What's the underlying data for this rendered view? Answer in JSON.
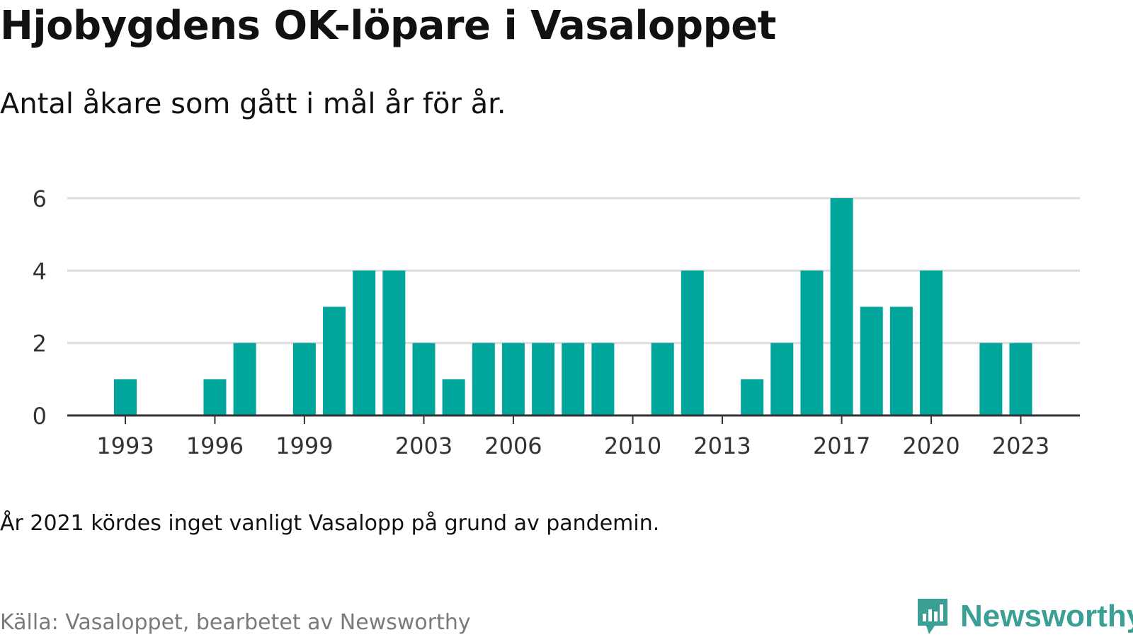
{
  "header": {
    "title": "Hjobygdens OK-löpare i Vasaloppet",
    "subtitle": "Antal åkare som gått i mål år för år."
  },
  "footer": {
    "note": "År 2021 kördes inget vanligt Vasalopp på grund av pandemin.",
    "source": "Källa: Vasaloppet, bearbetet av Newsworthy",
    "brand": "Newsworthy"
  },
  "colors": {
    "bar": "#00a69c",
    "grid": "#dddddd",
    "axis": "#333333",
    "tick_text": "#333333",
    "brand": "#3a9f94"
  },
  "icons": {
    "brand_logo": "newsworthy-logo-icon"
  },
  "chart_data": {
    "type": "bar",
    "title": "Hjobygdens OK-löpare i Vasaloppet",
    "subtitle": "Antal åkare som gått i mål år för år.",
    "xlabel": "",
    "ylabel": "",
    "x": [
      1993,
      1996,
      1997,
      1999,
      2000,
      2001,
      2002,
      2003,
      2004,
      2005,
      2006,
      2007,
      2008,
      2009,
      2011,
      2012,
      2014,
      2015,
      2016,
      2017,
      2018,
      2019,
      2020,
      2022,
      2023
    ],
    "values": [
      1,
      1,
      2,
      2,
      3,
      4,
      4,
      2,
      1,
      2,
      2,
      2,
      2,
      2,
      2,
      4,
      1,
      2,
      4,
      6,
      3,
      3,
      4,
      2,
      2
    ],
    "xlim": [
      1990.6,
      2025
    ],
    "ylim": [
      0,
      6
    ],
    "yticks": [
      0,
      2,
      4,
      6
    ],
    "xticks": [
      1993,
      1996,
      1999,
      2003,
      2006,
      2010,
      2013,
      2017,
      2020,
      2023
    ],
    "grid": true,
    "legend": "none"
  }
}
